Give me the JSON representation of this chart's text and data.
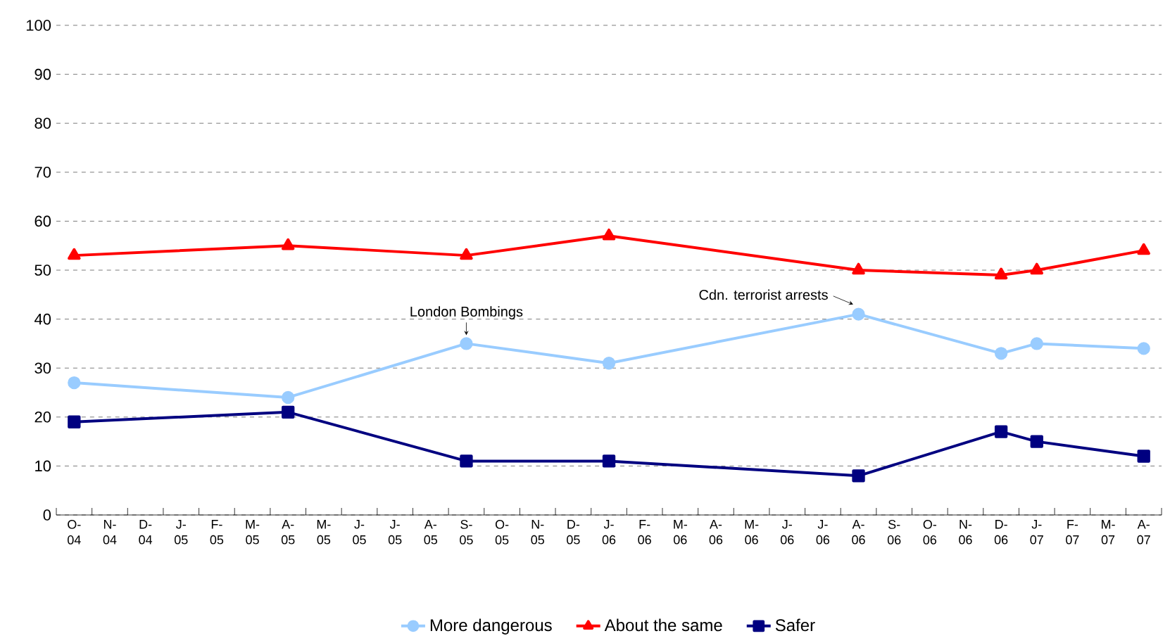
{
  "chart_data": {
    "type": "line",
    "categories": [
      "O-04",
      "N-04",
      "D-04",
      "J-05",
      "F-05",
      "M-05",
      "A-05",
      "M-05",
      "J-05",
      "J-05",
      "A-05",
      "S-05",
      "O-05",
      "N-05",
      "D-05",
      "J-06",
      "F-06",
      "M-06",
      "A-06",
      "M-06",
      "J-06",
      "J-06",
      "A-06",
      "S-06",
      "O-06",
      "N-06",
      "D-06",
      "J-07",
      "F-07",
      "M-07",
      "A-07"
    ],
    "series": [
      {
        "name": "More dangerous",
        "color": "#99ccff",
        "marker": "circle",
        "values": [
          27,
          null,
          null,
          null,
          null,
          null,
          24,
          null,
          null,
          null,
          null,
          35,
          null,
          null,
          null,
          31,
          null,
          null,
          null,
          null,
          null,
          null,
          41,
          null,
          null,
          null,
          33,
          35,
          null,
          null,
          34
        ]
      },
      {
        "name": "About the same",
        "color": "#ff0000",
        "marker": "triangle",
        "values": [
          53,
          null,
          null,
          null,
          null,
          null,
          55,
          null,
          null,
          null,
          null,
          53,
          null,
          null,
          null,
          57,
          null,
          null,
          null,
          null,
          null,
          null,
          50,
          null,
          null,
          null,
          49,
          50,
          null,
          null,
          54
        ]
      },
      {
        "name": "Safer",
        "color": "#000080",
        "marker": "square",
        "values": [
          19,
          null,
          null,
          null,
          null,
          null,
          21,
          null,
          null,
          null,
          null,
          11,
          null,
          null,
          null,
          11,
          null,
          null,
          null,
          null,
          null,
          null,
          8,
          null,
          null,
          null,
          17,
          15,
          null,
          null,
          12
        ]
      }
    ],
    "ylim": [
      0,
      100
    ],
    "yticks": [
      0,
      10,
      20,
      30,
      40,
      50,
      60,
      70,
      80,
      90,
      100
    ],
    "grid": "y",
    "legend": "bottom",
    "annotations": [
      {
        "text": "London Bombings",
        "x": "S-05",
        "y": 35
      },
      "Cdn. terrorist arrests"
    ]
  }
}
